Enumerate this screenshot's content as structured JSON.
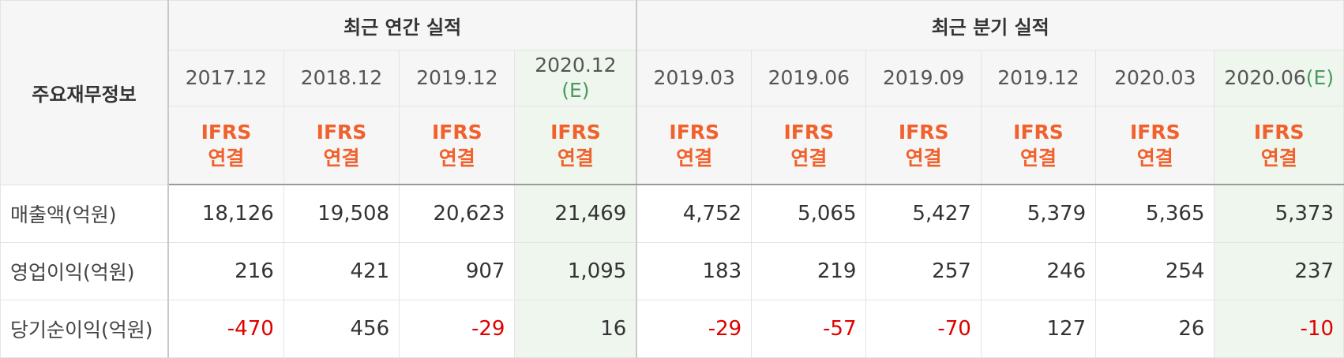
{
  "corner_label": "주요재무정보",
  "groups": {
    "annual": "최근 연간 실적",
    "quarterly": "최근 분기 실적"
  },
  "periods": [
    {
      "label": "2017.12",
      "est": ""
    },
    {
      "label": "2018.12",
      "est": ""
    },
    {
      "label": "2019.12",
      "est": ""
    },
    {
      "label": "2020.12",
      "est": "(E)"
    },
    {
      "label": "2019.03",
      "est": ""
    },
    {
      "label": "2019.06",
      "est": ""
    },
    {
      "label": "2019.09",
      "est": ""
    },
    {
      "label": "2019.12",
      "est": ""
    },
    {
      "label": "2020.03",
      "est": ""
    },
    {
      "label": "2020.06",
      "est": "(E)"
    }
  ],
  "accounting": {
    "line1": "IFRS",
    "line2": "연결"
  },
  "rows": [
    {
      "label": "매출액(억원)",
      "values": [
        "18,126",
        "19,508",
        "20,623",
        "21,469",
        "4,752",
        "5,065",
        "5,427",
        "5,379",
        "5,365",
        "5,373"
      ]
    },
    {
      "label": "영업이익(억원)",
      "values": [
        "216",
        "421",
        "907",
        "1,095",
        "183",
        "219",
        "257",
        "246",
        "254",
        "237"
      ]
    },
    {
      "label": "당기순이익(억원)",
      "values": [
        "-470",
        "456",
        "-29",
        "16",
        "-29",
        "-57",
        "-70",
        "127",
        "26",
        "-10"
      ]
    }
  ],
  "colors": {
    "accounting_text": "#f0612c",
    "negative_value": "#e00000",
    "estimate_background": "#eef6ee",
    "estimate_marker": "#4a9a5e"
  }
}
